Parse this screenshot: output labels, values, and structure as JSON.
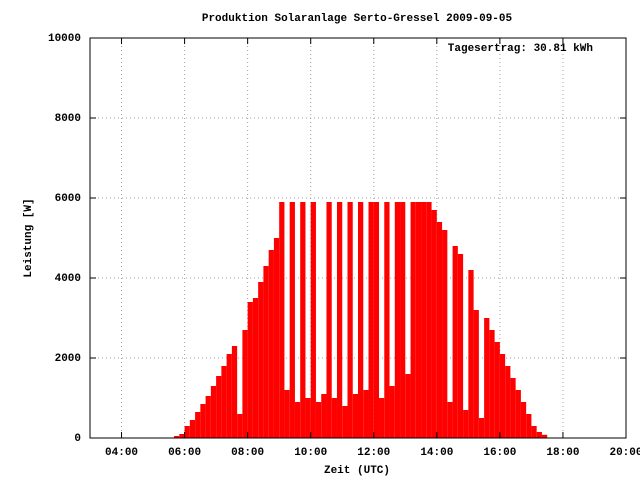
{
  "chart_data": {
    "type": "impulse",
    "title": "Produktion Solaranlage Serto-Gressel 2009-09-05",
    "x_label": "Zeit (UTC)",
    "y_label": "Leistung [W]",
    "annotation": "Tagesertrag: 30.81 kWh",
    "color": "#ff0000",
    "grid": true,
    "xlim": [
      180,
      1200
    ],
    "xticks": [
      {
        "value": 240,
        "label": "04:00"
      },
      {
        "value": 360,
        "label": "06:00"
      },
      {
        "value": 480,
        "label": "08:00"
      },
      {
        "value": 600,
        "label": "10:00"
      },
      {
        "value": 720,
        "label": "12:00"
      },
      {
        "value": 840,
        "label": "14:00"
      },
      {
        "value": 960,
        "label": "16:00"
      },
      {
        "value": 1080,
        "label": "18:00"
      },
      {
        "value": 1200,
        "label": "20:00"
      }
    ],
    "ylim": [
      0,
      10000
    ],
    "yticks": [
      0,
      2000,
      4000,
      6000,
      8000,
      10000
    ],
    "x": [
      330,
      340,
      350,
      360,
      370,
      380,
      390,
      400,
      410,
      420,
      430,
      440,
      450,
      460,
      470,
      480,
      490,
      500,
      510,
      520,
      530,
      540,
      550,
      560,
      570,
      580,
      590,
      600,
      610,
      620,
      630,
      640,
      650,
      660,
      670,
      680,
      690,
      700,
      710,
      720,
      730,
      740,
      750,
      760,
      770,
      780,
      790,
      800,
      810,
      820,
      830,
      840,
      850,
      860,
      870,
      880,
      890,
      900,
      910,
      920,
      930,
      940,
      950,
      960,
      970,
      980,
      990,
      1000,
      1010,
      1020,
      1030,
      1040,
      1050
    ],
    "values": [
      0,
      50,
      100,
      300,
      450,
      650,
      850,
      1050,
      1300,
      1550,
      1800,
      2100,
      2300,
      600,
      2700,
      3400,
      3500,
      3900,
      4300,
      4700,
      5000,
      5900,
      1200,
      5900,
      900,
      5900,
      1000,
      5900,
      900,
      1100,
      5900,
      1000,
      5900,
      800,
      5900,
      1100,
      5900,
      1200,
      5900,
      5900,
      1000,
      5900,
      1300,
      5900,
      5900,
      1600,
      5900,
      5900,
      5900,
      5900,
      5700,
      5400,
      5200,
      900,
      4800,
      4600,
      700,
      4200,
      3200,
      500,
      3000,
      2700,
      2400,
      2100,
      1800,
      1500,
      1200,
      900,
      600,
      300,
      150,
      80,
      0
    ]
  }
}
